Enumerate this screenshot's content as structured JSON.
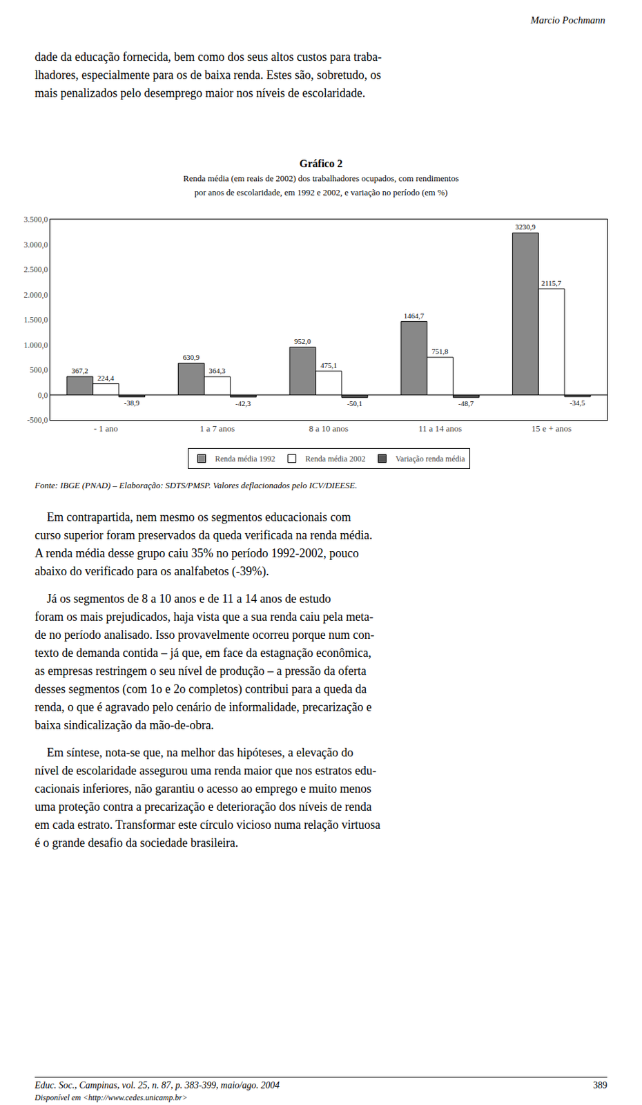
{
  "chart_data": {
    "type": "bar",
    "title": "Gráfico 2",
    "subtitle": "Renda média (em reais de 2002) dos trabalhadores ocupados, com rendimentos\npor anos de escolaridade, em 1992 e 2002, e variação no período (em %)",
    "categories": [
      "- 1 ano",
      "1 a 7 anos",
      "8 a 10 anos",
      "11 a 14 anos",
      "15 e + anos"
    ],
    "series": [
      {
        "name": "Renda média 1992",
        "color": "#888888",
        "values": [
          367.2,
          630.9,
          952.0,
          1464.7,
          3230.9
        ],
        "value_labels": [
          "367,2",
          "630,9",
          "952,0",
          "1464,7",
          "3230,9"
        ]
      },
      {
        "name": "Renda média 2002",
        "color": "#ffffff",
        "values": [
          224.4,
          364.3,
          475.1,
          751.8,
          2115.7
        ],
        "value_labels": [
          "224,4",
          "364,3",
          "475,1",
          "751,8",
          "2115,7"
        ]
      },
      {
        "name": "Variação renda média",
        "color": "#555555",
        "values": [
          -38.9,
          -42.3,
          -50.1,
          -48.7,
          -34.5
        ],
        "value_labels": [
          "-38,9",
          "-42,3",
          "-50,1",
          "-48,7",
          "-34,5"
        ]
      }
    ],
    "ylim": [
      -500,
      3500
    ],
    "yticks": [
      {
        "value": -500,
        "label": "-500,0"
      },
      {
        "value": 0,
        "label": "0,0"
      },
      {
        "value": 500,
        "label": "500,0"
      },
      {
        "value": 1000,
        "label": "1.000,0"
      },
      {
        "value": 1500,
        "label": "1.500,0"
      },
      {
        "value": 2000,
        "label": "2.000,0"
      },
      {
        "value": 2500,
        "label": "2.500,0"
      },
      {
        "value": 3000,
        "label": "3.000,0"
      },
      {
        "value": 3500,
        "label": "3.500,0"
      }
    ],
    "data_labels": true,
    "grid": false,
    "legend": "bottom",
    "annotations": [
      "Marcio Pochmann",
      "dade da educação fornecida, bem como dos seus altos custos para traba-\nlhadores, especialmente para os de baixa renda. Estes são, sobretudo, os\nmais penalizados pelo desemprego maior nos níveis de escolaridade.",
      "Fonte: IBGE (PNAD) – Elaboração: SDTS/PMSP. Valores deflacionados pelo ICV/DIEESE.",
      "    Em contrapartida, nem mesmo os segmentos educacionais com\ncurso superior foram preservados da queda verificada na renda média.\nA renda média desse grupo caiu 35% no período 1992-2002, pouco\nabaixo do verificado para os analfabetos (-39%).",
      "    Já os segmentos de 8 a 10 anos e de 11 a 14 anos de estudo\nforam os mais prejudicados, haja vista que a sua renda caiu pela meta-\nde no período analisado. Isso provavelmente ocorreu porque num con-\ntexto de demanda contida – já que, em face da estagnação econômica,\nas empresas restringem o seu nível de produção – a pressão da oferta\ndesses segmentos (com 1o e 2o completos) contribui para a queda da\nrenda, o que é agravado pelo cenário de informalidade, precarização e\nbaixa sindicalização da mão-de-obra.",
      "    Em síntese, nota-se que, na melhor das hipóteses, a elevação do\nnível de escolaridade assegurou uma renda maior que nos estratos edu-\ncacionais inferiores, não garantiu o acesso ao emprego e muito menos\numa proteção contra a precarização e deterioração dos níveis de renda\nem cada estrato. Transformar este círculo vicioso numa relação virtuosa\né o grande desafio da sociedade brasileira.",
      "Educ. Soc., Campinas, vol. 25, n. 87, p. 383-399, maio/ago. 2004",
      "389",
      "Disponível em <http://www.cedes.unicamp.br>"
    ]
  }
}
